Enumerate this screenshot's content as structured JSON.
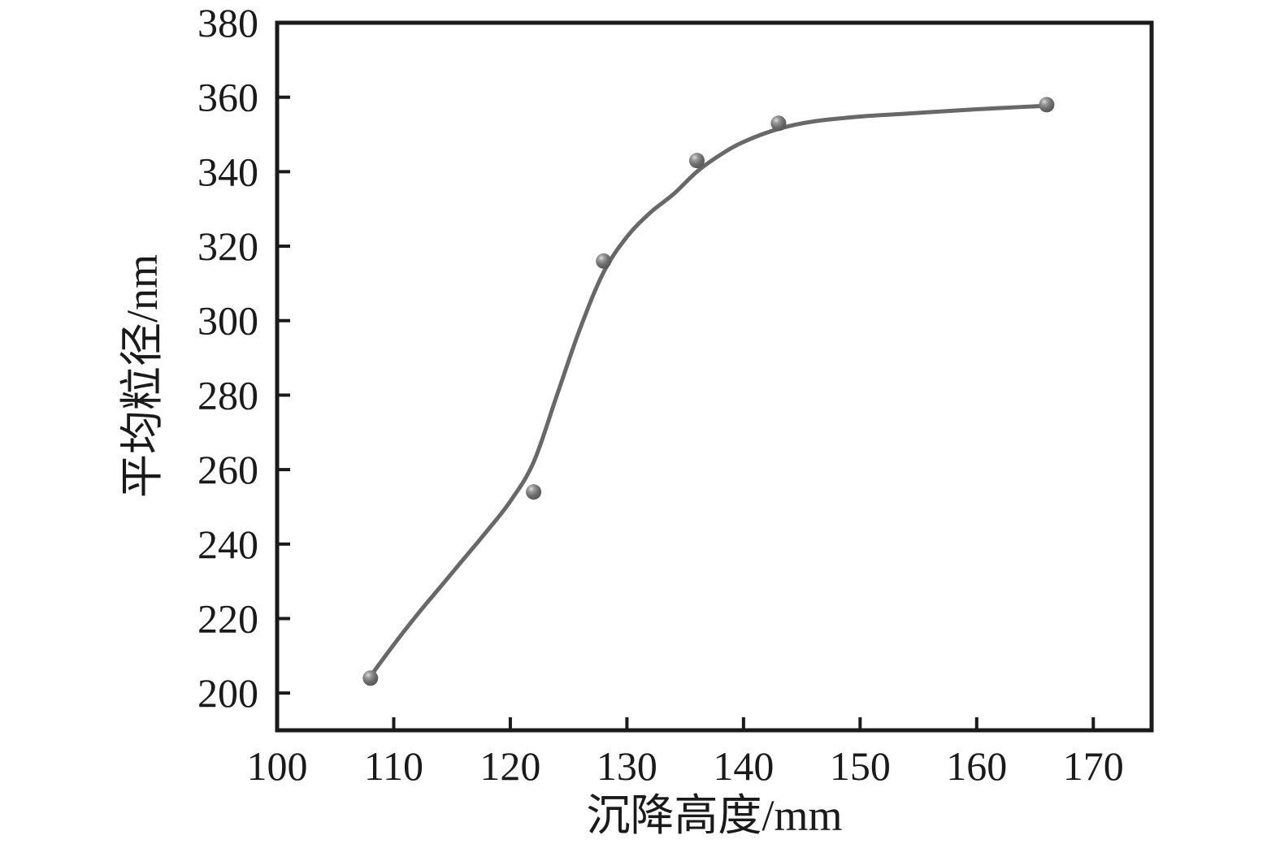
{
  "figure": {
    "background": "#ffffff"
  },
  "chart_data": {
    "type": "scatter",
    "title": "",
    "xlabel": "沉降高度/mm",
    "ylabel": "平均粒径/nm",
    "xlim": [
      100,
      175
    ],
    "ylim": [
      190,
      380
    ],
    "x_ticks": [
      100,
      110,
      120,
      130,
      140,
      150,
      160,
      170
    ],
    "y_ticks": [
      200,
      220,
      240,
      260,
      280,
      300,
      320,
      340,
      360,
      380
    ],
    "grid": false,
    "legend": null,
    "series": [
      {
        "name": "平均粒径",
        "marker": "sphere",
        "points": [
          {
            "x": 108,
            "y": 204
          },
          {
            "x": 122,
            "y": 254
          },
          {
            "x": 128,
            "y": 316
          },
          {
            "x": 136,
            "y": 343
          },
          {
            "x": 143,
            "y": 353
          },
          {
            "x": 166,
            "y": 358
          }
        ]
      }
    ],
    "fit_curve": [
      [
        108,
        204.5
      ],
      [
        110,
        213
      ],
      [
        112,
        221
      ],
      [
        114,
        228.5
      ],
      [
        116,
        236
      ],
      [
        118,
        243.5
      ],
      [
        120,
        251.5
      ],
      [
        122,
        262
      ],
      [
        124,
        280
      ],
      [
        126,
        298
      ],
      [
        128,
        313
      ],
      [
        130,
        322.5
      ],
      [
        132,
        329
      ],
      [
        134,
        334
      ],
      [
        136,
        340
      ],
      [
        138,
        344.5
      ],
      [
        140,
        348
      ],
      [
        143,
        351.5
      ],
      [
        146,
        353.5
      ],
      [
        150,
        354.8
      ],
      [
        154,
        355.6
      ],
      [
        158,
        356.4
      ],
      [
        162,
        357.1
      ],
      [
        166,
        357.7
      ]
    ],
    "colors": {
      "axis": "#1a1a1a",
      "text": "#1a1a1a",
      "curve": "#686868",
      "marker_base": "#6e6e6e",
      "marker_dark": "#565656",
      "marker_highlight": "#dcdcdc"
    }
  }
}
